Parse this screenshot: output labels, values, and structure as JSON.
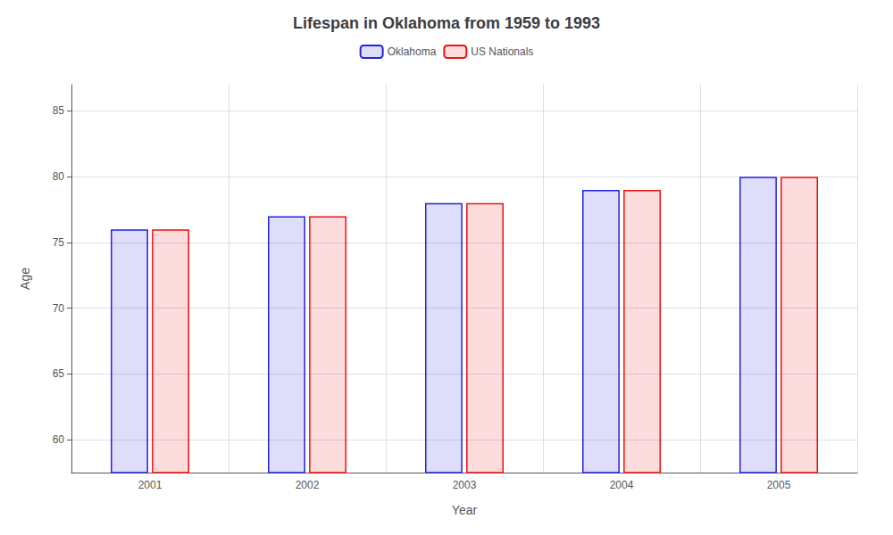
{
  "chart_data": {
    "type": "bar",
    "title": "Lifespan in Oklahoma from 1959 to 1993",
    "xlabel": "Year",
    "ylabel": "Age",
    "categories": [
      "2001",
      "2002",
      "2003",
      "2004",
      "2005"
    ],
    "series": [
      {
        "name": "Oklahoma",
        "color": "#2222dd",
        "values": [
          76,
          77,
          78,
          79,
          80
        ]
      },
      {
        "name": "US Nationals",
        "color": "#ee1111",
        "values": [
          76,
          77,
          78,
          79,
          80
        ]
      }
    ],
    "ylim": [
      57.5,
      87
    ],
    "yticks": [
      60,
      65,
      70,
      75,
      80,
      85
    ],
    "grid": true,
    "legend": "top"
  }
}
